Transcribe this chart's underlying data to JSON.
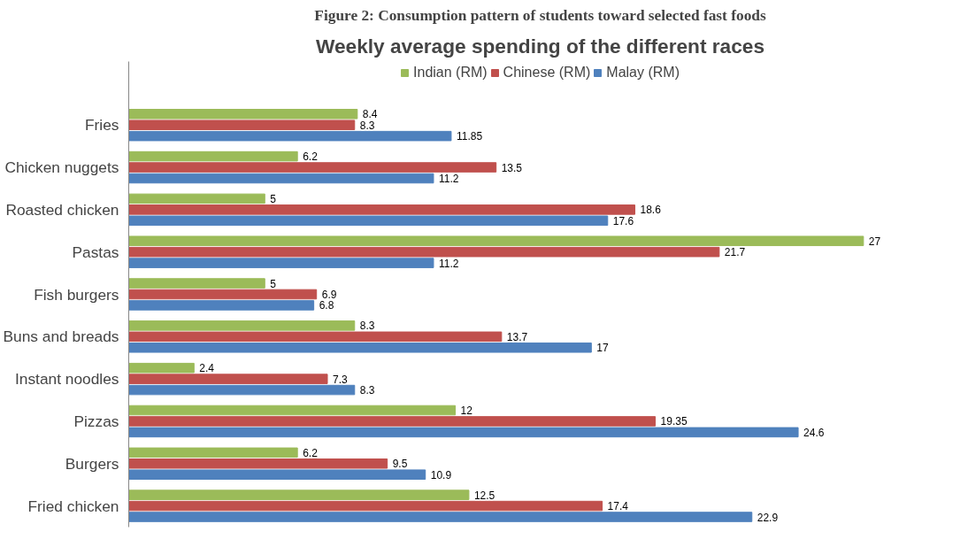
{
  "chart_data": {
    "type": "bar",
    "orientation": "horizontal",
    "title": "Weekly average spending of the different races",
    "annotations": [
      "Figure 2: Consumption pattern of students toward selected fast foods"
    ],
    "categories": [
      "Fries",
      "Chicken nuggets",
      "Roasted chicken",
      "Pastas",
      "Fish burgers",
      "Buns and breads",
      "Instant noodles",
      "Pizzas",
      "Burgers",
      "Fried chicken"
    ],
    "series": [
      {
        "name": "Indian (RM)",
        "color": "#9bbb59",
        "values": [
          8.4,
          6.2,
          5,
          27,
          5,
          8.3,
          2.4,
          12,
          6.2,
          12.5
        ]
      },
      {
        "name": "Chinese (RM)",
        "color": "#c0504d",
        "values": [
          8.3,
          13.5,
          18.6,
          21.7,
          6.9,
          13.7,
          7.3,
          19.35,
          9.5,
          17.4
        ]
      },
      {
        "name": "Malay (RM)",
        "color": "#4f81bd",
        "values": [
          11.85,
          11.2,
          17.6,
          11.2,
          6.8,
          17,
          8.3,
          24.6,
          10.9,
          22.9
        ]
      }
    ],
    "data_labels": true,
    "legend": "top",
    "grid": false,
    "tick_labels": "y"
  }
}
